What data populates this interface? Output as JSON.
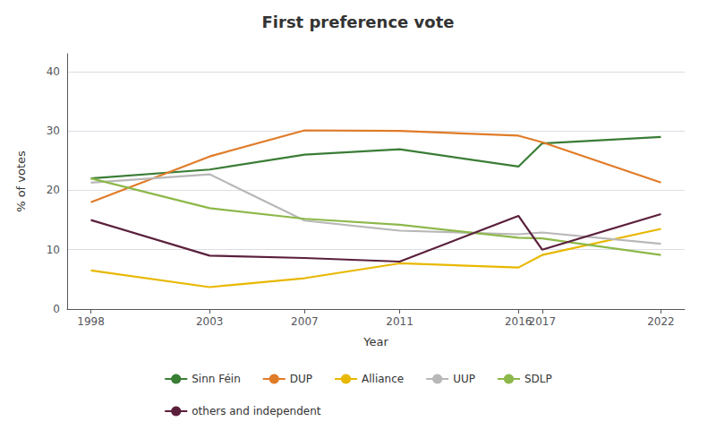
{
  "chart_data": {
    "type": "line",
    "title": "First preference vote",
    "x_label": "Year",
    "y_label": "% of votes",
    "x": [
      1998,
      2003,
      2007,
      2011,
      2016,
      2017,
      2022
    ],
    "series": [
      {
        "name": "Sinn Féin",
        "color": "#3a7d35",
        "values": [
          22,
          23.5,
          26,
          26.9,
          24,
          27.9,
          29
        ]
      },
      {
        "name": "DUP",
        "color": "#e07b28",
        "values": [
          18,
          25.7,
          30.1,
          30,
          29.2,
          28.1,
          21.3
        ]
      },
      {
        "name": "Alliance",
        "color": "#e8b800",
        "values": [
          6.5,
          3.7,
          5.2,
          7.7,
          7,
          9.1,
          13.5
        ]
      },
      {
        "name": "UUP",
        "color": "#b8b8b8",
        "values": [
          21.3,
          22.7,
          14.9,
          13.2,
          12.6,
          12.9,
          11.0
        ]
      },
      {
        "name": "SDLP",
        "color": "#8db84a",
        "values": [
          22,
          17,
          15.2,
          14.2,
          12,
          11.9,
          9.1
        ]
      },
      {
        "name": "others and independent",
        "color": "#5b1f3c",
        "values": [
          15,
          9,
          8.6,
          8,
          15.7,
          10,
          16
        ]
      }
    ],
    "xlim": [
      1997,
      2023
    ],
    "xticks": [
      1998,
      2003,
      2007,
      2011,
      2016,
      2017,
      2022
    ],
    "ylim": [
      0,
      43
    ],
    "yticks": [
      0,
      10,
      20,
      30,
      40
    ],
    "grid": true,
    "legend": "bottom"
  }
}
